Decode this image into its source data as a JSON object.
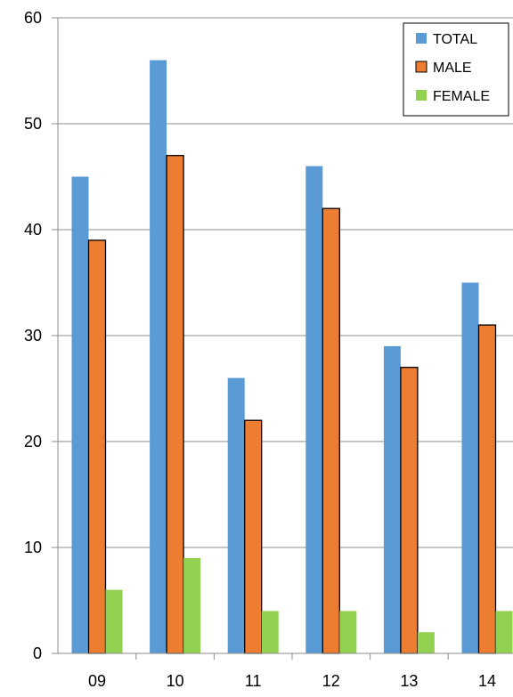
{
  "chart_data": {
    "type": "bar",
    "categories": [
      "09",
      "10",
      "11",
      "12",
      "13",
      "14"
    ],
    "series": [
      {
        "name": "TOTAL",
        "values": [
          45,
          56,
          26,
          46,
          29,
          35
        ],
        "color": "#5b9bd5",
        "outline": false
      },
      {
        "name": "MALE",
        "values": [
          39,
          47,
          22,
          42,
          27,
          31
        ],
        "color": "#ed7d31",
        "outline": true
      },
      {
        "name": "FEMALE",
        "values": [
          6,
          9,
          4,
          4,
          2,
          4
        ],
        "color": "#92d050",
        "outline": false
      }
    ],
    "ylim": [
      0,
      60
    ],
    "yticks": [
      0,
      10,
      20,
      30,
      40,
      50,
      60
    ],
    "grid": true,
    "legend_position": "top-right"
  }
}
